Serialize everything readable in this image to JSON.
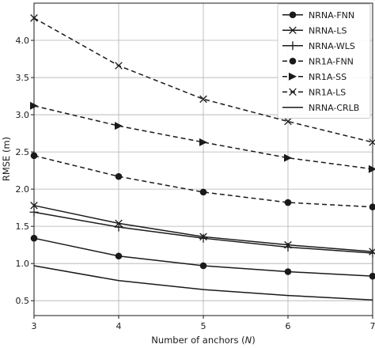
{
  "chart_data": {
    "type": "line",
    "xlabel": "Number of anchors (N)",
    "xlabel_parts": [
      "Number of anchors (",
      "N",
      ")"
    ],
    "ylabel": "RMSE (m)",
    "xlim": [
      3,
      7
    ],
    "ylim": [
      0.3,
      4.5
    ],
    "xticks": [
      3,
      4,
      5,
      6,
      7
    ],
    "yticks": [
      0.5,
      1.0,
      1.5,
      2.0,
      2.5,
      3.0,
      3.5,
      4.0
    ],
    "ytick_labels": [
      "0.5",
      "1.0",
      "1.5",
      "2.0",
      "2.5",
      "3.0",
      "3.5",
      "4.0"
    ],
    "grid": true,
    "legend_position": "top-right",
    "x": [
      3,
      4,
      5,
      6,
      7
    ],
    "series": [
      {
        "name": "NRNA-FNN",
        "marker": "circle",
        "dashed": false,
        "values": [
          1.34,
          1.1,
          0.97,
          0.89,
          0.83
        ]
      },
      {
        "name": "NRNA-LS",
        "marker": "x",
        "dashed": false,
        "values": [
          1.78,
          1.54,
          1.36,
          1.25,
          1.16
        ]
      },
      {
        "name": "NRNA-WLS",
        "marker": "plus",
        "dashed": false,
        "values": [
          1.69,
          1.49,
          1.34,
          1.22,
          1.14
        ]
      },
      {
        "name": "NR1A-FNN",
        "marker": "circle",
        "dashed": true,
        "values": [
          2.45,
          2.17,
          1.96,
          1.82,
          1.76
        ]
      },
      {
        "name": "NR1A-SS",
        "marker": "triangle",
        "dashed": true,
        "values": [
          3.12,
          2.85,
          2.63,
          2.42,
          2.27
        ]
      },
      {
        "name": "NR1A-LS",
        "marker": "x",
        "dashed": true,
        "values": [
          4.3,
          3.66,
          3.21,
          2.91,
          2.63
        ]
      },
      {
        "name": "NRNA-CRLB",
        "marker": "none",
        "dashed": false,
        "values": [
          0.97,
          0.77,
          0.65,
          0.57,
          0.51
        ]
      }
    ]
  },
  "colors": {
    "line": "#1a1a1a",
    "grid": "#b0b0b0",
    "background": "#ffffff",
    "legend_border": "#cccccc"
  }
}
